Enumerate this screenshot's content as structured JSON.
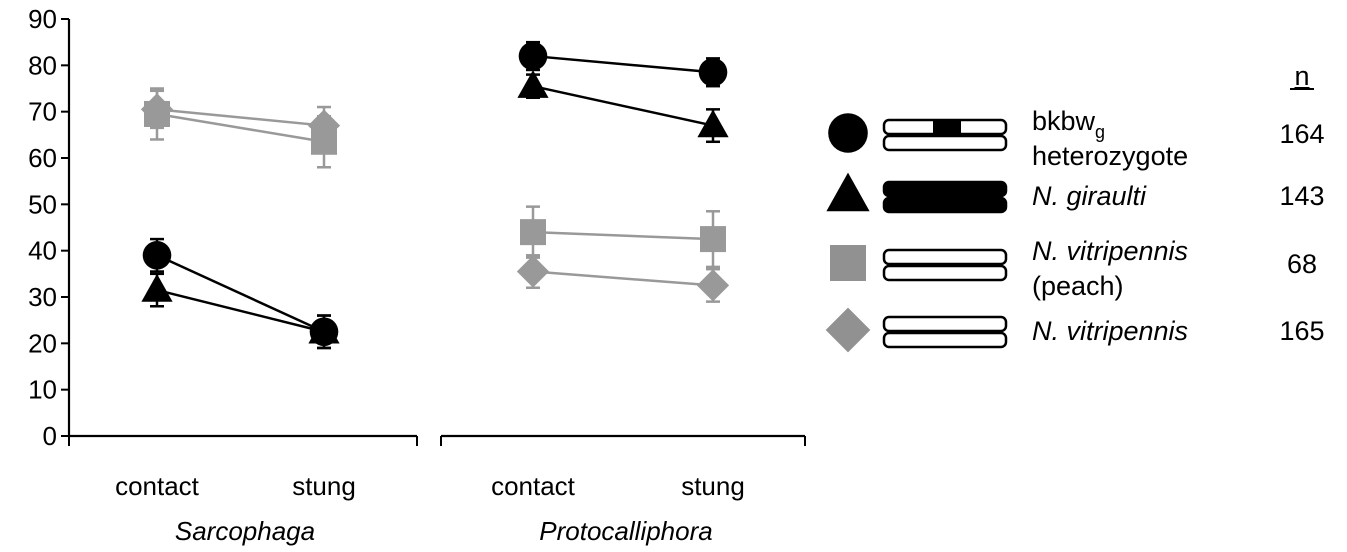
{
  "chart_data": {
    "type": "line",
    "ylim": [
      0,
      90
    ],
    "yticks": [
      0,
      10,
      20,
      30,
      40,
      50,
      60,
      70,
      80,
      90
    ],
    "groups": [
      {
        "name": "Sarcophaga",
        "categories": [
          "contact",
          "stung"
        ]
      },
      {
        "name": "Protocalliphora",
        "categories": [
          "contact",
          "stung"
        ]
      }
    ],
    "legend_header": "n",
    "series": [
      {
        "key": "bkbw",
        "label": "bkbw",
        "label_sub": "g",
        "label_line2": "heterozygote",
        "n": "164",
        "marker": "circle",
        "color": "#000000",
        "genotype": "heterozygote",
        "values": {
          "Sarcophaga": [
            39,
            22.5
          ],
          "Protocalliphora": [
            82,
            78.5
          ]
        },
        "errors": {
          "Sarcophaga": [
            3.5,
            3.5
          ],
          "Protocalliphora": [
            3,
            3
          ]
        }
      },
      {
        "key": "giraulti",
        "label": "N. giraulti",
        "label_italic": true,
        "n": "143",
        "marker": "triangle",
        "color": "#000000",
        "genotype": "black",
        "values": {
          "Sarcophaga": [
            31.5,
            22.5
          ],
          "Protocalliphora": [
            75.5,
            67
          ]
        },
        "errors": {
          "Sarcophaga": [
            3.5,
            3.5
          ],
          "Protocalliphora": [
            2.5,
            3.5
          ]
        }
      },
      {
        "key": "peach",
        "label": "N. vitripennis",
        "label_italic": true,
        "label_line2": "(peach)",
        "n": "68",
        "marker": "square",
        "color": "#999999",
        "genotype": "white",
        "values": {
          "Sarcophaga": [
            69.5,
            63.5
          ],
          "Protocalliphora": [
            44,
            42.5
          ]
        },
        "errors": {
          "Sarcophaga": [
            5.5,
            5.5
          ],
          "Protocalliphora": [
            5.5,
            6
          ]
        }
      },
      {
        "key": "vitripennis",
        "label": "N. vitripennis",
        "label_italic": true,
        "n": "165",
        "marker": "diamond",
        "color": "#999999",
        "genotype": "white",
        "values": {
          "Sarcophaga": [
            70.5,
            67
          ],
          "Protocalliphora": [
            35.5,
            32.5
          ]
        },
        "errors": {
          "Sarcophaga": [
            4,
            4
          ],
          "Protocalliphora": [
            3.5,
            3.5
          ]
        }
      }
    ]
  }
}
